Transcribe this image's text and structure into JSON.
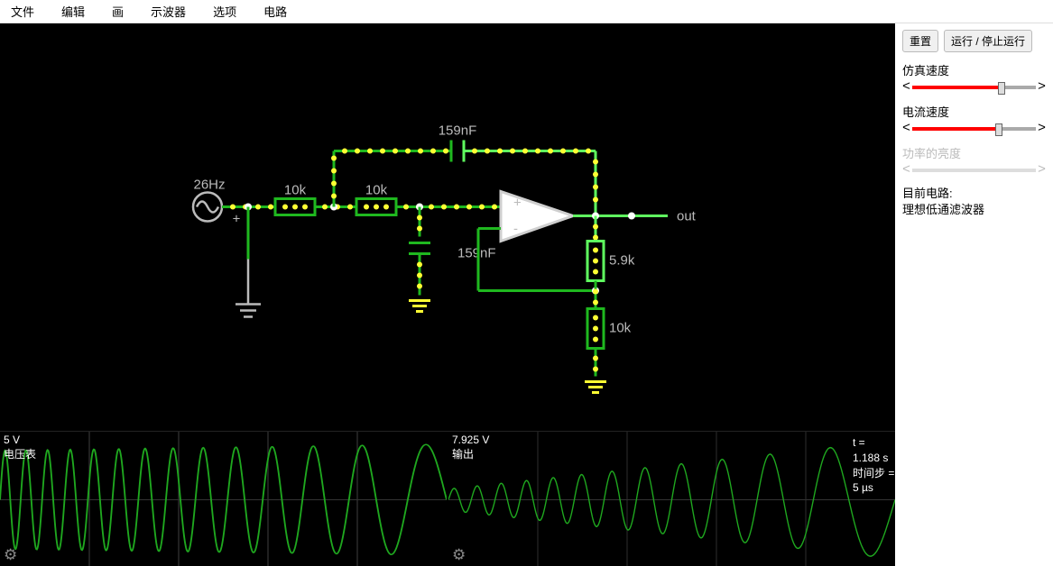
{
  "menu": {
    "items": [
      "文件",
      "编辑",
      "画",
      "示波器",
      "选项",
      "电路"
    ]
  },
  "buttons": {
    "reset": "重置",
    "runstop": "运行 / 停止运行"
  },
  "sliders": {
    "sim_speed": {
      "label": "仿真速度",
      "pct": 72
    },
    "current_speed": {
      "label": "电流速度",
      "pct": 70
    },
    "brightness": {
      "label": "功率的亮度",
      "pct": 0,
      "disabled": true
    }
  },
  "circuit_info": {
    "label": "目前电路:",
    "name": "理想低通滤波器"
  },
  "timeinfo": {
    "t": "t = 1.188 s",
    "step": "时间步 = 5 µs"
  },
  "scope1": {
    "top": "5 V",
    "bottom": "电压表"
  },
  "scope2": {
    "top": "7.925 V",
    "bottom": "输出"
  },
  "circuit": {
    "source_freq": "26Hz",
    "source_plus": "+",
    "r1": "10k",
    "r2": "10k",
    "c_top": "159nF",
    "c_mid": "159nF",
    "r_out1": "5.9k",
    "r_out2": "10k",
    "out_label": "out",
    "opamp_plus": "+",
    "opamp_minus": "-",
    "colors": {
      "wire": "#1fb81f",
      "wire_bright": "#5fff5f",
      "dot": "#ffff33",
      "component": "#bbbbbb",
      "label": "#bbbbbb",
      "resistor_box": "#20c020",
      "opamp_stroke": "#cfcfcf"
    }
  },
  "scope_style": {
    "wave_color": "#1fa81f",
    "grid_color": "#333333",
    "bg": "#000000"
  }
}
